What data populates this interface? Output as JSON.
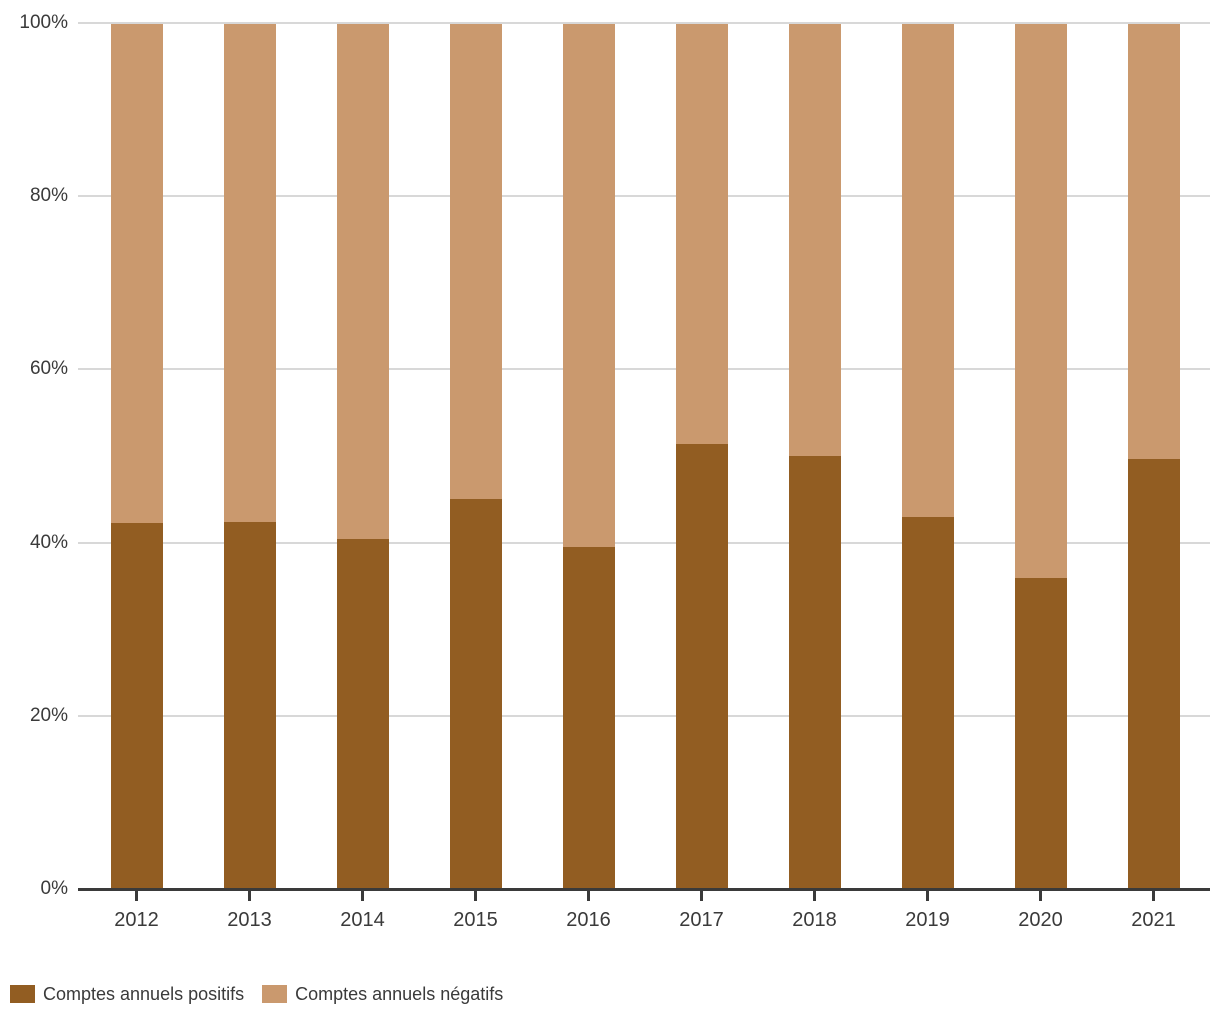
{
  "chart_data": {
    "type": "bar",
    "variant": "stacked-100-percent",
    "title": "",
    "xlabel": "",
    "ylabel": "",
    "ylim": [
      0,
      100
    ],
    "yticks": [
      "0%",
      "20%",
      "40%",
      "60%",
      "80%",
      "100%"
    ],
    "ytick_values": [
      0,
      20,
      40,
      60,
      80,
      100
    ],
    "grid": true,
    "legend_position": "bottom-left",
    "categories": [
      "2012",
      "2013",
      "2014",
      "2015",
      "2016",
      "2017",
      "2018",
      "2019",
      "2020",
      "2021"
    ],
    "series": [
      {
        "name": "Comptes annuels positifs",
        "color": "#925D22",
        "values": [
          42.3,
          42.4,
          40.5,
          45.1,
          39.5,
          51.5,
          50.1,
          43.0,
          35.9,
          49.7
        ]
      },
      {
        "name": "Comptes annuels négatifs",
        "color": "#CA996E",
        "values": [
          57.7,
          57.6,
          59.5,
          54.9,
          60.5,
          48.5,
          49.9,
          57.0,
          64.1,
          50.3
        ]
      }
    ],
    "colors": {
      "axis": "#3a3a3a",
      "gridline": "#d8d8d8",
      "text": "#3a3a3a",
      "background": "#ffffff"
    }
  },
  "legend": {
    "positifs_label": "Comptes annuels positifs",
    "negatifs_label": "Comptes annuels négatifs"
  }
}
